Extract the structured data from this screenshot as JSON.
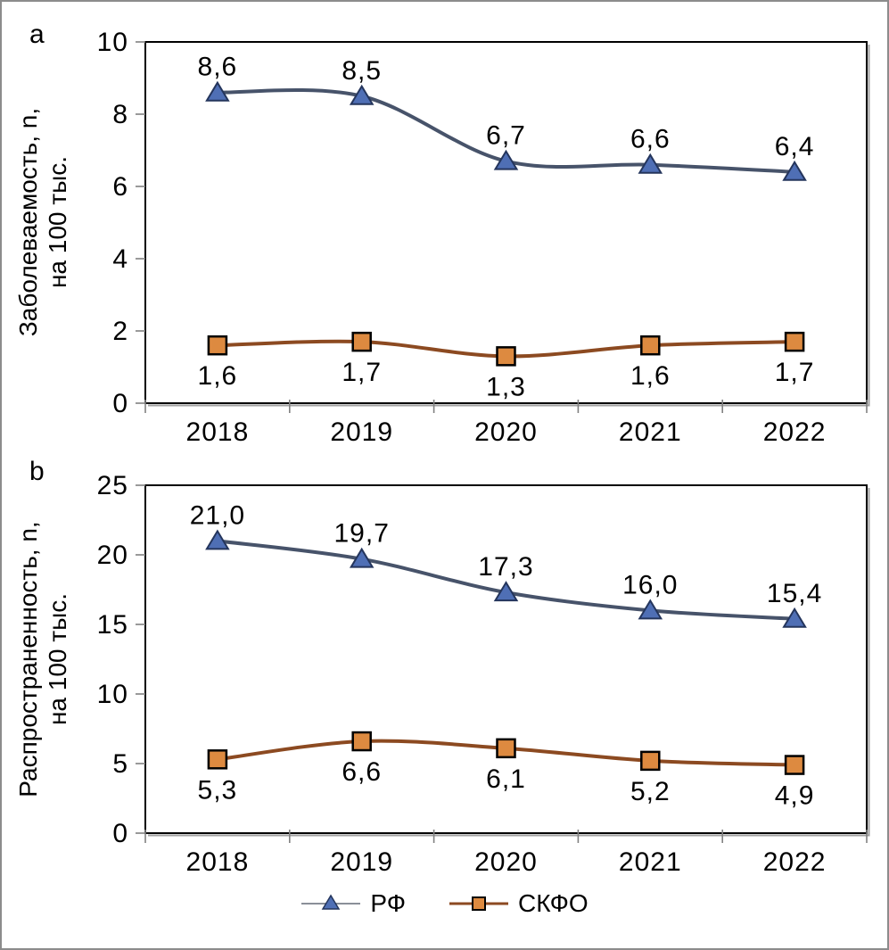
{
  "chart_data": [
    {
      "type": "line",
      "panel_label": "a",
      "title": "",
      "ylabel_line1": "Заболеваемость, n,",
      "ylabel_line2": "на 100 тыс.",
      "categories": [
        "2018",
        "2019",
        "2020",
        "2021",
        "2022"
      ],
      "ylim": [
        0,
        10
      ],
      "yticks": [
        0,
        2,
        4,
        6,
        8,
        10
      ],
      "grid": false,
      "series": [
        {
          "name": "РФ",
          "values": [
            8.6,
            8.5,
            6.7,
            6.6,
            6.4
          ],
          "labels": [
            "8,6",
            "8,5",
            "6,7",
            "6,6",
            "6,4"
          ],
          "marker": "triangle",
          "line_color": "#47536A",
          "marker_fill": "#4F6FB5",
          "marker_edge": "#24355C",
          "label_position": "above"
        },
        {
          "name": "СКФО",
          "values": [
            1.6,
            1.7,
            1.3,
            1.6,
            1.7
          ],
          "labels": [
            "1,6",
            "1,7",
            "1,3",
            "1,6",
            "1,7"
          ],
          "marker": "square",
          "line_color": "#8C4A21",
          "marker_fill": "#DD8A40",
          "marker_edge": "#000000",
          "label_position": "below"
        }
      ]
    },
    {
      "type": "line",
      "panel_label": "b",
      "title": "",
      "ylabel_line1": "Распространенность, n,",
      "ylabel_line2": "на 100 тыс.",
      "categories": [
        "2018",
        "2019",
        "2020",
        "2021",
        "2022"
      ],
      "ylim": [
        0,
        25
      ],
      "yticks": [
        0,
        5,
        10,
        15,
        20,
        25
      ],
      "grid": false,
      "series": [
        {
          "name": "РФ",
          "values": [
            21.0,
            19.7,
            17.3,
            16.0,
            15.4
          ],
          "labels": [
            "21,0",
            "19,7",
            "17,3",
            "16,0",
            "15,4"
          ],
          "marker": "triangle",
          "line_color": "#47536A",
          "marker_fill": "#4F6FB5",
          "marker_edge": "#24355C",
          "label_position": "above"
        },
        {
          "name": "СКФО",
          "values": [
            5.3,
            6.6,
            6.1,
            5.2,
            4.9
          ],
          "labels": [
            "5,3",
            "6,6",
            "6,1",
            "5,2",
            "4,9"
          ],
          "marker": "square",
          "line_color": "#8C4A21",
          "marker_fill": "#DD8A40",
          "marker_edge": "#000000",
          "label_position": "below"
        }
      ]
    }
  ],
  "legend": {
    "position": "bottom-center",
    "items": [
      {
        "label": "РФ",
        "marker": "triangle",
        "line_color": "#8A8F98",
        "marker_fill": "#4F6FB5",
        "marker_edge": "#24355C"
      },
      {
        "label": "СКФО",
        "marker": "square",
        "line_color": "#8C4A21",
        "marker_fill": "#DD8A40",
        "marker_edge": "#000000"
      }
    ]
  },
  "colors": {
    "axis": "#000000",
    "axis_shadow": "#A0A0A0",
    "tick": "#808080",
    "text": "#000000",
    "background": "#FFFFFF",
    "frame_border": "#8C8C8C"
  }
}
